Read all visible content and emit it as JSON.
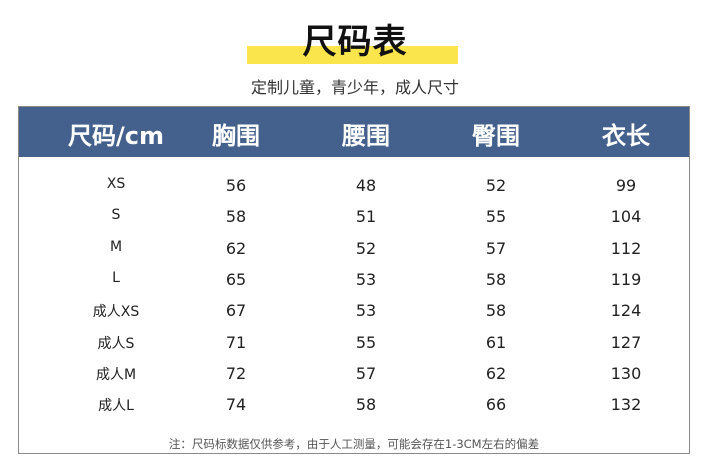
{
  "title": "尺码表",
  "subtitle": "定制儿童，青少年，成人尺寸",
  "accent_color": "#fae54d",
  "header_color": "#44608c",
  "table": {
    "headers": [
      "尺码/cm",
      "胸围",
      "腰围",
      "臀围",
      "衣长"
    ],
    "rows": [
      [
        "XS",
        "56",
        "48",
        "52",
        "99"
      ],
      [
        "S",
        "58",
        "51",
        "55",
        "104"
      ],
      [
        "M",
        "62",
        "52",
        "57",
        "112"
      ],
      [
        "L",
        "65",
        "53",
        "58",
        "119"
      ],
      [
        "成人XS",
        "67",
        "53",
        "58",
        "124"
      ],
      [
        "成人S",
        "71",
        "55",
        "61",
        "127"
      ],
      [
        "成人M",
        "72",
        "57",
        "62",
        "130"
      ],
      [
        "成人L",
        "74",
        "58",
        "66",
        "132"
      ]
    ]
  },
  "note": "注：尺码标数据仅供参考，由于人工测量，可能会存在1-3CM左右的偏差"
}
